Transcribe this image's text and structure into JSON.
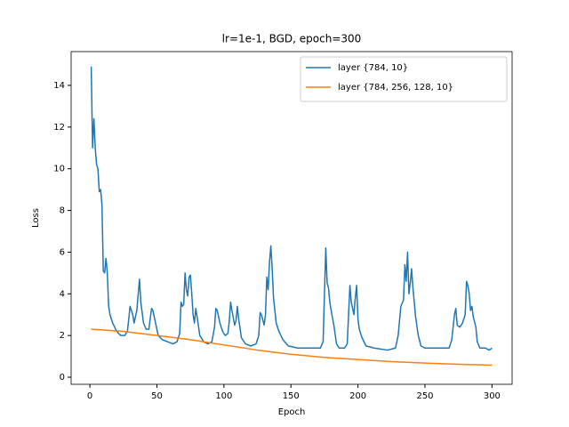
{
  "chart_data": {
    "type": "line",
    "title": "lr=1e-1, BGD, epoch=300",
    "x_label": "Epoch",
    "y_label": "Loss",
    "xlim": [
      -14,
      315
    ],
    "ylim": [
      -0.34,
      15.62
    ],
    "xticks": [
      0,
      50,
      100,
      150,
      200,
      250,
      300
    ],
    "yticks": [
      0,
      2,
      4,
      6,
      8,
      10,
      12,
      14
    ],
    "grid": false,
    "legend": "upper right",
    "series": [
      {
        "name": "layer {784, 10}",
        "color": "#1f77b4",
        "x": [
          1,
          2,
          3,
          4,
          5,
          6,
          7,
          8,
          9,
          10,
          11,
          12,
          13,
          14,
          15,
          17,
          20,
          23,
          26,
          28,
          30,
          32,
          33,
          35,
          37,
          38,
          40,
          42,
          44,
          46,
          47,
          49,
          51,
          54,
          58,
          62,
          65,
          67,
          68,
          69,
          70,
          71,
          72,
          73,
          74,
          75,
          76,
          77,
          78,
          79,
          80,
          82,
          85,
          88,
          91,
          93,
          94,
          95,
          97,
          99,
          101,
          103,
          104,
          105,
          106,
          108,
          109,
          110,
          111,
          113,
          116,
          120,
          124,
          126,
          127,
          128,
          130,
          131,
          132,
          133,
          134,
          135,
          136,
          137,
          139,
          141,
          144,
          148,
          155,
          165,
          172,
          174,
          175,
          176,
          177,
          178,
          179,
          180,
          182,
          184,
          186,
          190,
          192,
          193,
          194,
          195,
          196,
          197,
          198,
          199,
          200,
          201,
          203,
          206,
          212,
          222,
          228,
          230,
          232,
          234,
          235,
          236,
          237,
          238,
          239,
          240,
          241,
          243,
          245,
          247,
          250,
          260,
          268,
          270,
          272,
          273,
          274,
          276,
          278,
          280,
          281,
          282,
          283,
          284,
          285,
          286,
          288,
          289,
          291,
          295,
          298,
          300
        ],
        "values": [
          14.9,
          11.0,
          12.4,
          11.0,
          10.2,
          10.0,
          8.9,
          9.0,
          8.3,
          5.1,
          5.0,
          5.7,
          5.0,
          3.4,
          3.0,
          2.6,
          2.2,
          2.0,
          2.0,
          2.2,
          3.4,
          3.0,
          2.6,
          3.2,
          4.7,
          3.6,
          2.6,
          2.3,
          2.3,
          3.3,
          3.2,
          2.6,
          2.0,
          1.8,
          1.7,
          1.6,
          1.7,
          2.1,
          3.6,
          3.4,
          3.5,
          5.0,
          4.2,
          3.9,
          4.8,
          4.9,
          4.0,
          3.0,
          2.6,
          3.3,
          2.9,
          2.0,
          1.7,
          1.6,
          1.7,
          2.4,
          3.3,
          3.2,
          2.6,
          2.2,
          2.0,
          2.1,
          2.7,
          3.6,
          3.2,
          2.5,
          2.7,
          3.4,
          2.8,
          1.9,
          1.6,
          1.5,
          1.6,
          2.0,
          3.1,
          3.0,
          2.5,
          3.0,
          4.8,
          4.2,
          5.5,
          6.3,
          5.2,
          3.8,
          2.6,
          2.2,
          1.8,
          1.5,
          1.4,
          1.4,
          1.4,
          1.7,
          4.0,
          6.2,
          4.5,
          4.3,
          3.6,
          3.2,
          2.5,
          1.6,
          1.4,
          1.4,
          1.6,
          3.0,
          4.4,
          3.6,
          3.3,
          3.0,
          3.8,
          4.4,
          2.8,
          2.3,
          1.9,
          1.5,
          1.4,
          1.3,
          1.4,
          2.0,
          3.4,
          3.7,
          5.4,
          4.6,
          6.0,
          4.0,
          4.5,
          5.2,
          4.3,
          2.9,
          2.0,
          1.5,
          1.4,
          1.4,
          1.4,
          1.8,
          3.0,
          3.3,
          2.5,
          2.4,
          2.6,
          3.0,
          4.6,
          4.4,
          4.0,
          3.2,
          3.4,
          2.9,
          2.4,
          1.7,
          1.4,
          1.4,
          1.3,
          1.4
        ]
      },
      {
        "name": "layer {784, 256, 128, 10}",
        "color": "#ff7f0e",
        "x": [
          1,
          25,
          50,
          75,
          100,
          125,
          150,
          175,
          200,
          225,
          250,
          275,
          300
        ],
        "values": [
          2.3,
          2.2,
          2.0,
          1.8,
          1.55,
          1.3,
          1.1,
          0.95,
          0.85,
          0.75,
          0.68,
          0.62,
          0.58
        ]
      }
    ]
  }
}
